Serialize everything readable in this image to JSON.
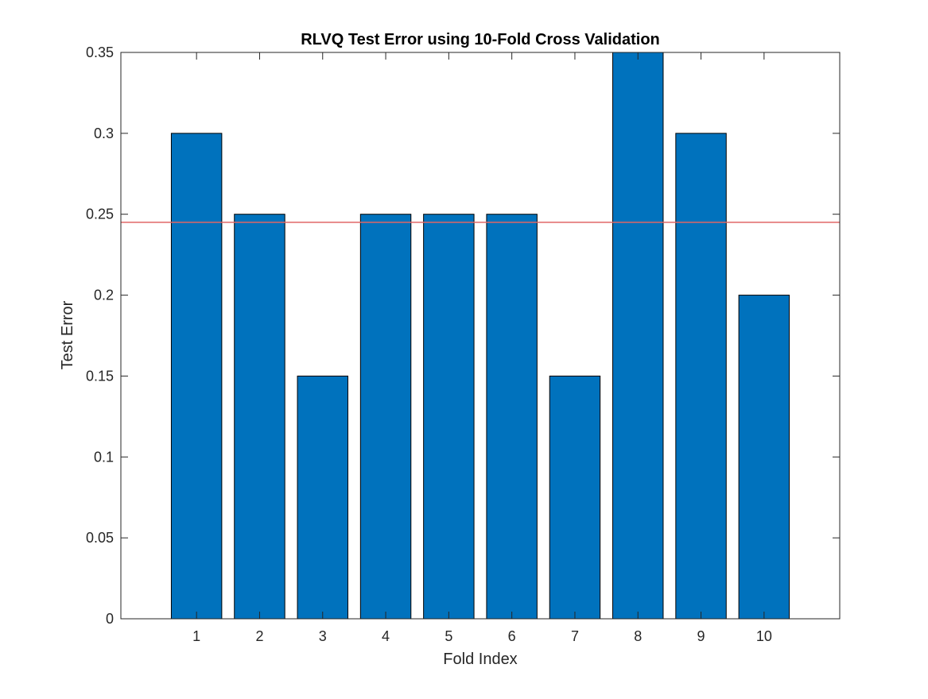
{
  "chart_data": {
    "type": "bar",
    "title": "RLVQ Test Error using 10-Fold Cross Validation",
    "xlabel": "Fold Index",
    "ylabel": "Test Error",
    "categories": [
      "1",
      "2",
      "3",
      "4",
      "5",
      "6",
      "7",
      "8",
      "9",
      "10"
    ],
    "values": [
      0.3,
      0.25,
      0.15,
      0.25,
      0.25,
      0.25,
      0.15,
      0.35,
      0.3,
      0.2
    ],
    "ylim": [
      0,
      0.35
    ],
    "xlim": [
      -0.2,
      11.2
    ],
    "yticks": [
      "0",
      "0.05",
      "0.1",
      "0.15",
      "0.2",
      "0.25",
      "0.3",
      "0.35"
    ],
    "ytick_values": [
      0,
      0.05,
      0.1,
      0.15,
      0.2,
      0.25,
      0.3,
      0.35
    ],
    "reference_line": {
      "y": 0.245,
      "color": "#e06666"
    },
    "bar_color": "#0072bd",
    "bar_edge_color": "#000000",
    "grid": false,
    "legend": "none"
  }
}
